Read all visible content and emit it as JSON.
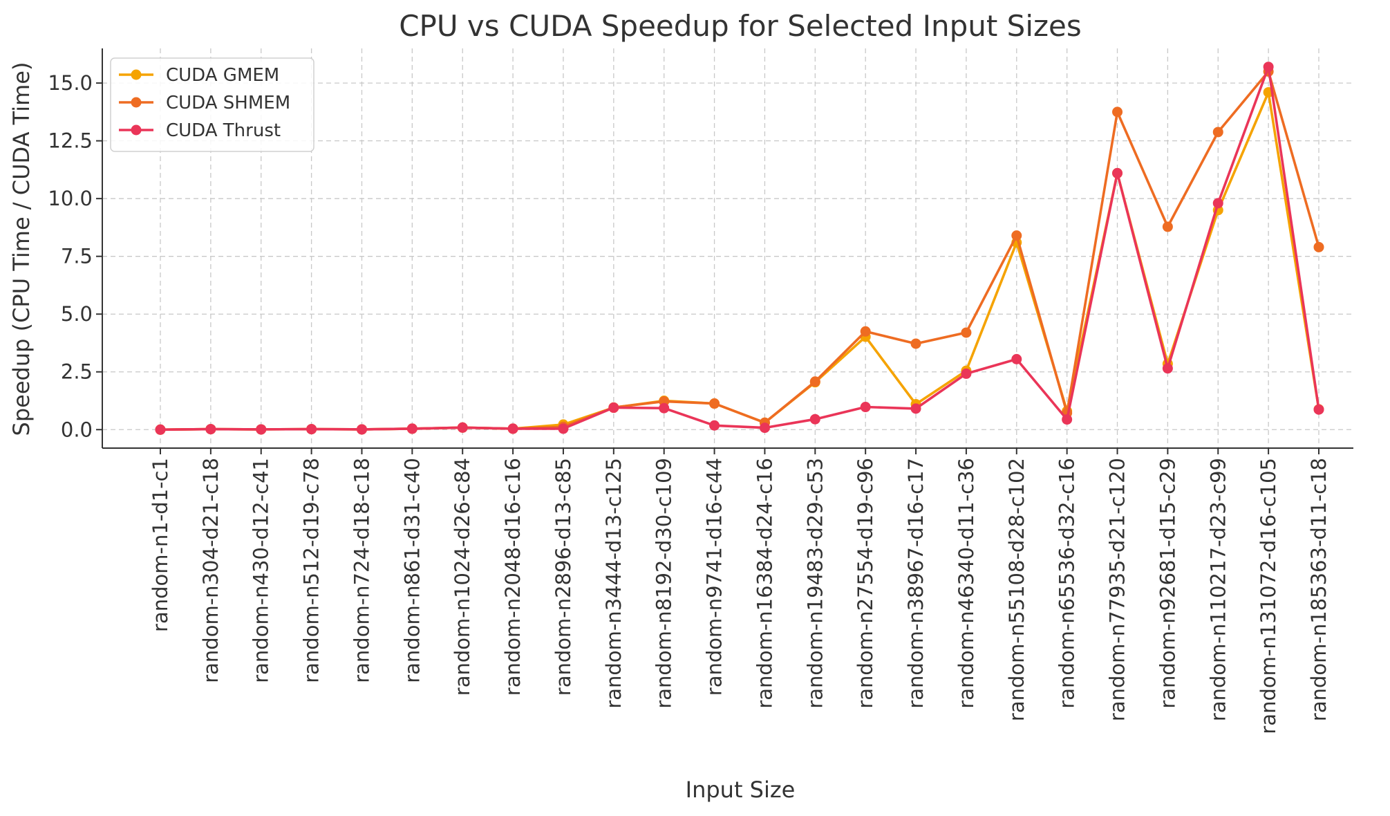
{
  "chart_data": {
    "type": "line",
    "title": "CPU vs CUDA Speedup for Selected Input Sizes",
    "xlabel": "Input Size",
    "ylabel": "Speedup (CPU Time / CUDA Time)",
    "ylim": [
      -0.8,
      16.5
    ],
    "yticks": [
      0.0,
      2.5,
      5.0,
      7.5,
      10.0,
      12.5,
      15.0
    ],
    "ytick_labels": [
      "0.0",
      "2.5",
      "5.0",
      "7.5",
      "10.0",
      "12.5",
      "15.0"
    ],
    "grid": true,
    "legend_position": "upper-left",
    "categories": [
      "random-n1-d1-c1",
      "random-n304-d21-c18",
      "random-n430-d12-c41",
      "random-n512-d19-c78",
      "random-n724-d18-c18",
      "random-n861-d31-c40",
      "random-n1024-d26-c84",
      "random-n2048-d16-c16",
      "random-n2896-d13-c85",
      "random-n3444-d13-c125",
      "random-n8192-d30-c109",
      "random-n9741-d16-c44",
      "random-n16384-d24-c16",
      "random-n19483-d29-c53",
      "random-n27554-d19-c96",
      "random-n38967-d16-c17",
      "random-n46340-d11-c36",
      "random-n55108-d28-c102",
      "random-n65536-d32-c16",
      "random-n77935-d21-c120",
      "random-n92681-d15-c29",
      "random-n110217-d23-c99",
      "random-n131072-d16-c105",
      "random-n185363-d11-c18"
    ],
    "series": [
      {
        "name": "CUDA GMEM",
        "color": "#f5a300",
        "values": [
          0.0,
          0.02,
          0.01,
          0.02,
          0.01,
          0.04,
          0.09,
          0.04,
          0.22,
          0.95,
          1.25,
          1.13,
          0.3,
          2.05,
          4.02,
          1.1,
          2.55,
          8.1,
          0.8,
          11.1,
          2.85,
          9.5,
          14.6,
          0.88
        ]
      },
      {
        "name": "CUDA SHMEM",
        "color": "#ee6c22",
        "values": [
          0.0,
          0.02,
          0.01,
          0.02,
          0.01,
          0.04,
          0.09,
          0.04,
          0.12,
          0.96,
          1.22,
          1.13,
          0.3,
          2.08,
          4.25,
          3.72,
          4.2,
          8.4,
          0.72,
          13.75,
          8.78,
          12.88,
          15.5,
          7.9
        ]
      },
      {
        "name": "CUDA Thrust",
        "color": "#ea3558",
        "values": [
          0.0,
          0.02,
          0.01,
          0.02,
          0.01,
          0.04,
          0.09,
          0.04,
          0.04,
          0.95,
          0.93,
          0.18,
          0.08,
          0.45,
          0.98,
          0.91,
          2.42,
          3.05,
          0.44,
          11.1,
          2.65,
          9.8,
          15.7,
          0.87
        ]
      }
    ]
  }
}
